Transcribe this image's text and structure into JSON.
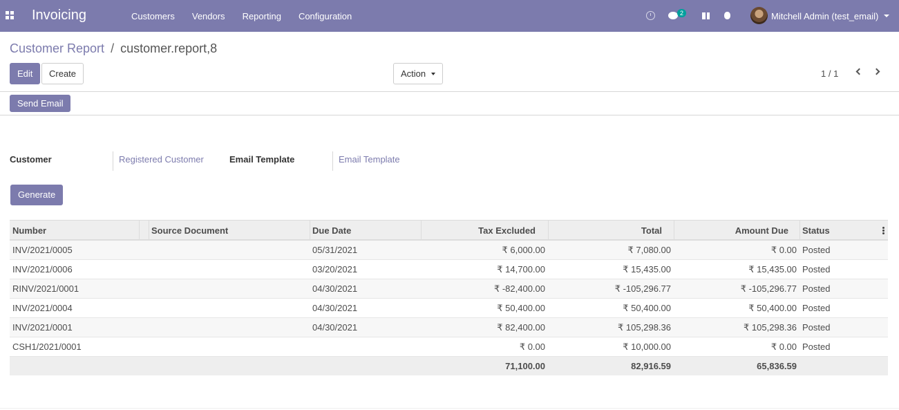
{
  "navbar": {
    "app_name": "Invoicing",
    "menu": [
      "Customers",
      "Vendors",
      "Reporting",
      "Configuration"
    ],
    "chat_count": "2",
    "user_name": "Mitchell Admin (test_email)"
  },
  "breadcrumb": {
    "parent": "Customer Report",
    "separator": "/",
    "current": "customer.report,8"
  },
  "toolbar": {
    "edit_label": "Edit",
    "create_label": "Create",
    "action_label": "Action",
    "pager": "1 / 1"
  },
  "header": {
    "send_email_label": "Send Email"
  },
  "form": {
    "customer_label": "Customer",
    "customer_value": "Registered Customer",
    "email_template_label": "Email Template",
    "email_template_value": "Email Template",
    "generate_label": "Generate"
  },
  "table": {
    "columns": [
      "Number",
      "Source Document",
      "Due Date",
      "Tax Excluded",
      "Total",
      "Amount Due",
      "Status"
    ],
    "rows": [
      {
        "number": "INV/2021/0005",
        "source": "",
        "due": "05/31/2021",
        "tax_excluded": "₹ 6,000.00",
        "total": "₹ 7,080.00",
        "amount_due": "₹ 0.00",
        "status": "Posted"
      },
      {
        "number": "INV/2021/0006",
        "source": "",
        "due": "03/20/2021",
        "tax_excluded": "₹ 14,700.00",
        "total": "₹ 15,435.00",
        "amount_due": "₹ 15,435.00",
        "status": "Posted"
      },
      {
        "number": "RINV/2021/0001",
        "source": "",
        "due": "04/30/2021",
        "tax_excluded": "₹ -82,400.00",
        "total": "₹ -105,296.77",
        "amount_due": "₹ -105,296.77",
        "status": "Posted"
      },
      {
        "number": "INV/2021/0004",
        "source": "",
        "due": "04/30/2021",
        "tax_excluded": "₹ 50,400.00",
        "total": "₹ 50,400.00",
        "amount_due": "₹ 50,400.00",
        "status": "Posted"
      },
      {
        "number": "INV/2021/0001",
        "source": "",
        "due": "04/30/2021",
        "tax_excluded": "₹ 82,400.00",
        "total": "₹ 105,298.36",
        "amount_due": "₹ 105,298.36",
        "status": "Posted"
      },
      {
        "number": "CSH1/2021/0001",
        "source": "",
        "due": "",
        "tax_excluded": "₹ 0.00",
        "total": "₹ 10,000.00",
        "amount_due": "₹ 0.00",
        "status": "Posted"
      }
    ],
    "totals": {
      "tax_excluded": "71,100.00",
      "total": "82,916.59",
      "amount_due": "65,836.59"
    }
  }
}
